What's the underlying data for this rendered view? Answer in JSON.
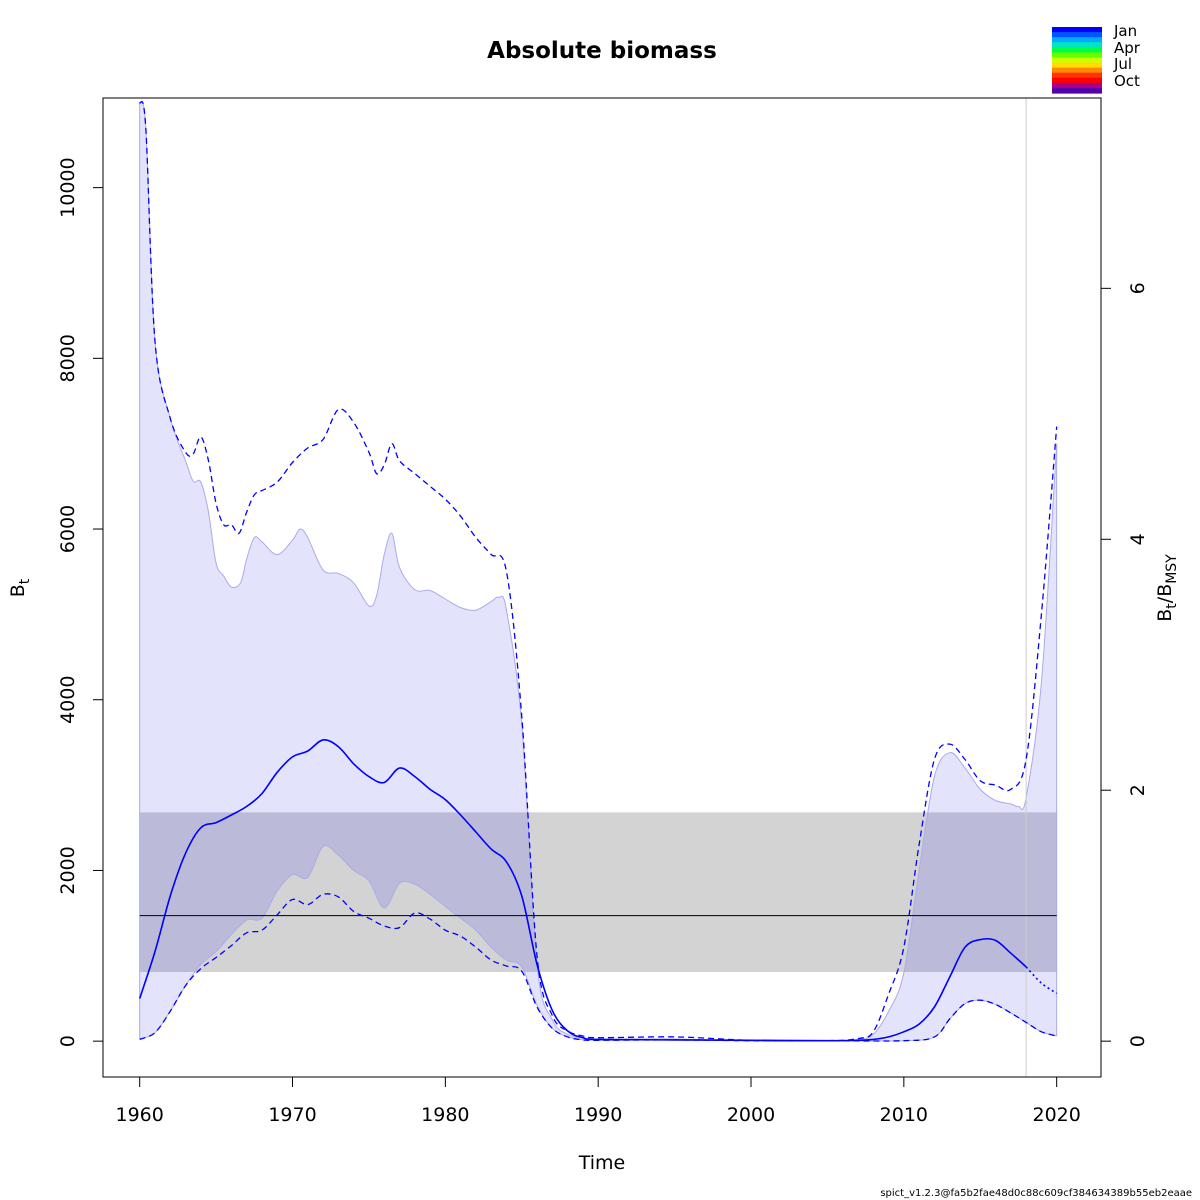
{
  "chart_data": {
    "type": "line",
    "title": "Absolute biomass",
    "xlabel": "Time",
    "ylabel": "B",
    "ylabel_sub": "t",
    "y2label": "B",
    "y2label_sub1": "t",
    "y2label_mid": "/B",
    "y2label_sub2": "MSY",
    "xlim": [
      1957.6,
      2022.9
    ],
    "ylim": [
      -420,
      11050
    ],
    "x_ticks": [
      "1960",
      "1970",
      "1980",
      "1990",
      "2000",
      "2010",
      "2020"
    ],
    "x_tick_values": [
      1960,
      1970,
      1980,
      1990,
      2000,
      2010,
      2020
    ],
    "y_ticks": [
      "0",
      "2000",
      "4000",
      "6000",
      "8000",
      "10000"
    ],
    "y_tick_values": [
      0,
      2000,
      4000,
      6000,
      8000,
      10000
    ],
    "y2_ticks": [
      "0",
      "2",
      "4",
      "6"
    ],
    "y2_tick_values": [
      0,
      2,
      4,
      6
    ],
    "bmsy_ratio": 1470,
    "bmsy": 1470,
    "bmsy_ci": [
      810,
      2680
    ],
    "last_observation_x": 2018,
    "legend_months": [
      "Jan",
      "Apr",
      "Jul",
      "Oct"
    ],
    "legend_colors": [
      "#0000ff",
      "#0055ff",
      "#00aaff",
      "#00e5c0",
      "#00ff44",
      "#66ff00",
      "#ccff00",
      "#ffdd00",
      "#ff8800",
      "#ff3300",
      "#ff0000",
      "#aa0088",
      "#5500aa"
    ],
    "footer": "spict_v1.2.3@fa5b2fae48d0c88c609cf384634389b55eb2eaae",
    "colors": {
      "estimate": "#0000ff",
      "ci_fill": "#e3e3fb",
      "ci_border": "#aaaaee",
      "bmsy_band": "#d3d3d3",
      "overlap": "#bbbbd9",
      "bmsy_line": "#000000",
      "vline": "#cccccc"
    },
    "series": [
      {
        "name": "",
        "role": "estimate",
        "x": [
          1960,
          1961,
          1962,
          1963,
          1964,
          1965,
          1966,
          1967,
          1968,
          1969,
          1970,
          1971,
          1972,
          1973,
          1974,
          1975,
          1976,
          1977,
          1978,
          1979,
          1980,
          1981,
          1982,
          1983,
          1984,
          1985,
          1986,
          1987,
          1988,
          1989,
          1990,
          1995,
          2000,
          2005,
          2007,
          2008,
          2009,
          2010,
          2011,
          2012,
          2013,
          2014,
          2015,
          2016,
          2017,
          2018
        ],
        "y": [
          500,
          1050,
          1700,
          2200,
          2500,
          2560,
          2650,
          2750,
          2900,
          3150,
          3330,
          3400,
          3530,
          3450,
          3250,
          3100,
          3030,
          3200,
          3100,
          2950,
          2830,
          2650,
          2450,
          2250,
          2100,
          1700,
          900,
          360,
          120,
          40,
          20,
          15,
          10,
          5,
          10,
          20,
          50,
          110,
          200,
          400,
          750,
          1100,
          1190,
          1180,
          1030,
          870
        ]
      },
      {
        "name": "",
        "role": "forecast",
        "x": [
          2018,
          2019,
          2020
        ],
        "y": [
          870,
          680,
          560
        ]
      },
      {
        "name": "",
        "role": "upper_ci",
        "x": [
          1960,
          1960.4,
          1961,
          1962,
          1963,
          1963.5,
          1964,
          1964.5,
          1965,
          1965.5,
          1966,
          1966.5,
          1967,
          1967.5,
          1968,
          1969,
          1970,
          1971,
          1972,
          1973,
          1974,
          1975,
          1975.5,
          1976,
          1976.5,
          1977,
          1978,
          1979,
          1980,
          1981,
          1982,
          1983,
          1984,
          1985,
          1986,
          1987,
          1988,
          1989,
          1990,
          1995,
          2000,
          2005,
          2007,
          2008,
          2009,
          2010,
          2011,
          2012,
          2013,
          2014,
          2015,
          2016,
          2017,
          2018,
          2019,
          2020
        ],
        "y": [
          11000,
          10700,
          8200,
          7300,
          6900,
          6880,
          7080,
          6800,
          6300,
          6050,
          6050,
          5950,
          6200,
          6400,
          6450,
          6550,
          6780,
          6950,
          7050,
          7400,
          7250,
          6900,
          6650,
          6750,
          7000,
          6800,
          6650,
          6500,
          6350,
          6150,
          5900,
          5700,
          5500,
          3800,
          1000,
          300,
          120,
          60,
          40,
          50,
          10,
          5,
          30,
          110,
          550,
          1100,
          2300,
          3300,
          3480,
          3300,
          3050,
          3000,
          2950,
          3300,
          5000,
          7200
        ]
      },
      {
        "name": "",
        "role": "lower_ci",
        "x": [
          1960,
          1961,
          1962,
          1963,
          1964,
          1965,
          1966,
          1967,
          1968,
          1969,
          1970,
          1971,
          1972,
          1973,
          1974,
          1975,
          1976,
          1977,
          1978,
          1979,
          1980,
          1981,
          1982,
          1983,
          1984,
          1985,
          1986,
          1987,
          1988,
          1989,
          1990,
          1995,
          2000,
          2005,
          2010,
          2012,
          2013,
          2014,
          2015,
          2016,
          2017,
          2018,
          2019,
          2020
        ],
        "y": [
          20,
          100,
          350,
          650,
          850,
          980,
          1120,
          1270,
          1300,
          1480,
          1660,
          1600,
          1720,
          1690,
          1520,
          1440,
          1350,
          1330,
          1500,
          1430,
          1300,
          1230,
          1100,
          950,
          880,
          820,
          400,
          150,
          50,
          15,
          10,
          15,
          5,
          5,
          5,
          50,
          260,
          440,
          480,
          430,
          330,
          220,
          110,
          60
        ]
      },
      {
        "name": "",
        "role": "upper_band",
        "x": [
          1960,
          1960.4,
          1961,
          1962,
          1963,
          1963.5,
          1964,
          1964.5,
          1965,
          1965.5,
          1966,
          1966.6,
          1967,
          1967.5,
          1968,
          1969,
          1970,
          1970.5,
          1971,
          1972,
          1973,
          1974,
          1975,
          1975.5,
          1976,
          1976.5,
          1977,
          1978,
          1979,
          1980,
          1981,
          1982,
          1983,
          1983.5,
          1984,
          1985,
          1986,
          1987,
          1988,
          1989,
          1990,
          1995,
          2000,
          2005,
          2007,
          2008,
          2009,
          2010,
          2011,
          2012,
          2013,
          2014,
          2015,
          2016,
          2017,
          2017.5,
          2018,
          2019,
          2020
        ],
        "y": [
          11000,
          10700,
          8200,
          7300,
          6800,
          6560,
          6550,
          6200,
          5600,
          5450,
          5320,
          5370,
          5650,
          5900,
          5850,
          5700,
          5870,
          6000,
          5900,
          5520,
          5480,
          5370,
          5100,
          5220,
          5700,
          5950,
          5550,
          5290,
          5280,
          5180,
          5080,
          5050,
          5150,
          5200,
          5050,
          3700,
          900,
          250,
          80,
          40,
          25,
          25,
          5,
          5,
          20,
          80,
          350,
          800,
          2000,
          3100,
          3380,
          3200,
          2950,
          2820,
          2780,
          2750,
          2850,
          4200,
          7000
        ]
      },
      {
        "name": "",
        "role": "lower_band",
        "x": [
          1960,
          1961,
          1962,
          1963,
          1964,
          1965,
          1966,
          1967,
          1968,
          1969,
          1970,
          1971,
          1972,
          1973,
          1974,
          1975,
          1976,
          1977,
          1978,
          1979,
          1980,
          1981,
          1982,
          1983,
          1984,
          1985,
          1986,
          1987,
          1988,
          1989,
          1990,
          1995,
          2000,
          2005,
          2010,
          2012,
          2013,
          2014,
          2015,
          2016,
          2017,
          2018,
          2019,
          2020
        ],
        "y": [
          20,
          100,
          350,
          650,
          900,
          1050,
          1250,
          1420,
          1440,
          1760,
          1950,
          1920,
          2280,
          2180,
          2000,
          1880,
          1560,
          1850,
          1840,
          1720,
          1580,
          1440,
          1300,
          1100,
          950,
          870,
          420,
          150,
          50,
          15,
          10,
          15,
          5,
          5,
          5,
          50,
          260,
          440,
          480,
          430,
          330,
          220,
          110,
          60
        ]
      }
    ]
  }
}
